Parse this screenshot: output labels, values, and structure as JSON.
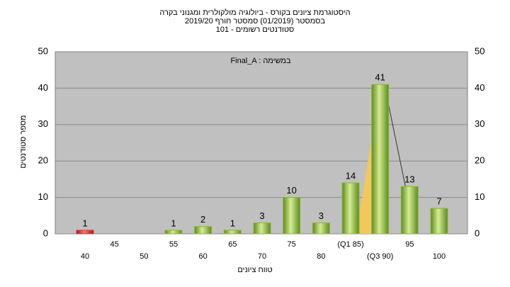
{
  "chart_data": {
    "type": "bar",
    "title": [
      "היסטוגרמת ציונים בקורס - ביולוגיה מולקולרית ומגנוני בקרה",
      "בסמסטר (01/2019) סמסטר חורף 2019/20",
      "סטודנטים רשומים - 101"
    ],
    "annotation": "Final_A : במשימה",
    "x_label": "טווח ציונים",
    "y_label": "מספר סטודנטים",
    "categories": [
      "40",
      "45",
      "50",
      "55",
      "60",
      "65",
      "70",
      "75",
      "80",
      "(Q1 85)",
      "(Q3 90)",
      "95",
      "100"
    ],
    "values": [
      1,
      0,
      0,
      1,
      2,
      1,
      3,
      10,
      3,
      14,
      41,
      13,
      7
    ],
    "colors": [
      "#d93a3a",
      "#8cb43c",
      "#8cb43c",
      "#8cb43c",
      "#8cb43c",
      "#8cb43c",
      "#8cb43c",
      "#8cb43c",
      "#8cb43c",
      "#8cb43c",
      "#8cb43c",
      "#8cb43c",
      "#8cb43c"
    ],
    "ylim": [
      0,
      50
    ],
    "yticks": [
      0,
      10,
      20,
      30,
      40,
      50
    ],
    "grid": true
  }
}
